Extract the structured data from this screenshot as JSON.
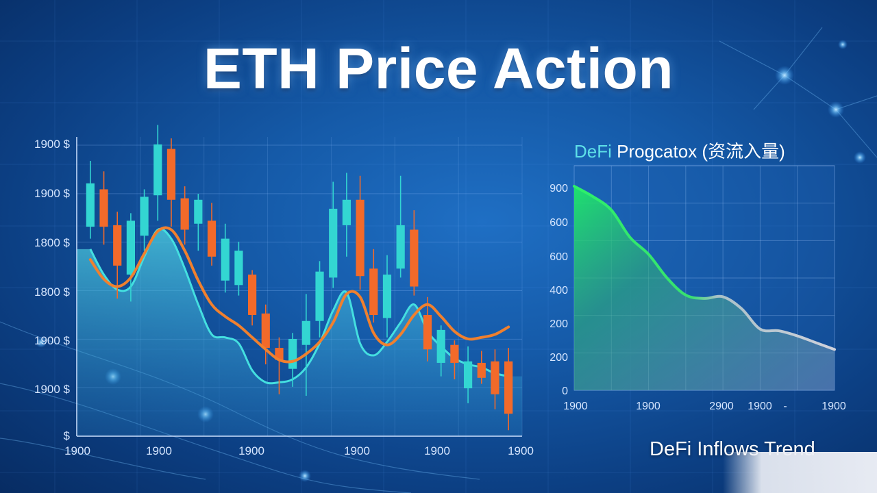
{
  "title": "ETH Price Action",
  "colors": {
    "bull": "#33d6d2",
    "bear": "#f26a2a",
    "ma": "#f0802e",
    "inflow_top": "#2df06a",
    "inflow_end": "#c9cbd6"
  },
  "chart_data": [
    {
      "type": "candlestick",
      "title": "",
      "y_tick_labels": [
        "1900 $",
        "1900 $",
        "1800 $",
        "1800 $",
        "1900 $",
        "1900 $",
        "$"
      ],
      "x_tick_labels": [
        "1900",
        "1900",
        "1900",
        "1900",
        "1900",
        "1900"
      ],
      "ylim": [
        0,
        1000
      ],
      "grid": true,
      "candles": [
        {
          "o": 700,
          "c": 845,
          "h": 920,
          "l": 660,
          "bull": true
        },
        {
          "o": 825,
          "c": 700,
          "h": 885,
          "l": 640,
          "bull": false
        },
        {
          "o": 705,
          "c": 570,
          "h": 750,
          "l": 460,
          "bull": false
        },
        {
          "o": 540,
          "c": 720,
          "h": 745,
          "l": 450,
          "bull": true
        },
        {
          "o": 670,
          "c": 800,
          "h": 825,
          "l": 620,
          "bull": true
        },
        {
          "o": 805,
          "c": 975,
          "h": 1040,
          "l": 720,
          "bull": true
        },
        {
          "o": 960,
          "c": 790,
          "h": 995,
          "l": 700,
          "bull": false
        },
        {
          "o": 795,
          "c": 690,
          "h": 835,
          "l": 640,
          "bull": false
        },
        {
          "o": 710,
          "c": 790,
          "h": 810,
          "l": 620,
          "bull": true
        },
        {
          "o": 720,
          "c": 600,
          "h": 780,
          "l": 570,
          "bull": false
        },
        {
          "o": 660,
          "c": 520,
          "h": 710,
          "l": 480,
          "bull": true
        },
        {
          "o": 620,
          "c": 505,
          "h": 650,
          "l": 470,
          "bull": true
        },
        {
          "o": 540,
          "c": 405,
          "h": 555,
          "l": 370,
          "bull": false
        },
        {
          "o": 410,
          "c": 295,
          "h": 440,
          "l": 240,
          "bull": false
        },
        {
          "o": 295,
          "c": 255,
          "h": 330,
          "l": 140,
          "bull": false
        },
        {
          "o": 225,
          "c": 325,
          "h": 345,
          "l": 165,
          "bull": true
        },
        {
          "o": 305,
          "c": 385,
          "h": 475,
          "l": 135,
          "bull": true
        },
        {
          "o": 385,
          "c": 550,
          "h": 585,
          "l": 330,
          "bull": true
        },
        {
          "o": 530,
          "c": 760,
          "h": 850,
          "l": 495,
          "bull": true
        },
        {
          "o": 705,
          "c": 790,
          "h": 880,
          "l": 600,
          "bull": true
        },
        {
          "o": 790,
          "c": 535,
          "h": 870,
          "l": 490,
          "bull": false
        },
        {
          "o": 560,
          "c": 405,
          "h": 625,
          "l": 380,
          "bull": false
        },
        {
          "o": 395,
          "c": 540,
          "h": 605,
          "l": 330,
          "bull": true
        },
        {
          "o": 560,
          "c": 705,
          "h": 870,
          "l": 530,
          "bull": true
        },
        {
          "o": 690,
          "c": 500,
          "h": 755,
          "l": 470,
          "bull": false
        },
        {
          "o": 405,
          "c": 290,
          "h": 465,
          "l": 250,
          "bull": false
        },
        {
          "o": 355,
          "c": 245,
          "h": 370,
          "l": 200,
          "bull": true
        },
        {
          "o": 305,
          "c": 245,
          "h": 320,
          "l": 190,
          "bull": false
        },
        {
          "o": 250,
          "c": 160,
          "h": 300,
          "l": 110,
          "bull": true
        },
        {
          "o": 245,
          "c": 195,
          "h": 285,
          "l": 175,
          "bull": false
        },
        {
          "o": 250,
          "c": 140,
          "h": 290,
          "l": 90,
          "bull": false
        },
        {
          "o": 250,
          "c": 75,
          "h": 295,
          "l": 20,
          "bull": false
        }
      ],
      "moving_average": [
        590,
        525,
        500,
        530,
        610,
        685,
        690,
        620,
        520,
        440,
        400,
        370,
        330,
        290,
        255,
        250,
        275,
        315,
        380,
        475,
        465,
        345,
        305,
        340,
        405,
        440,
        400,
        350,
        325,
        330,
        340,
        365
      ],
      "area_line": [
        625,
        540,
        490,
        500,
        600,
        690,
        660,
        560,
        440,
        340,
        330,
        310,
        220,
        180,
        180,
        190,
        230,
        310,
        420,
        480,
        310,
        270,
        315,
        380,
        440,
        350,
        300,
        260,
        240,
        230,
        210,
        200
      ]
    },
    {
      "type": "area",
      "title": "DeFi Progcatox (资流入量)",
      "title_accent": "DeFi",
      "title_rest": "Progcatox (资流入量)",
      "caption": "DeFi Inflows Trend",
      "y_tick_labels": [
        "900",
        "600",
        "600",
        "400",
        "200",
        "200",
        "0"
      ],
      "x_tick_labels": [
        "1900",
        "1900",
        "2900",
        "1900",
        "-",
        "1900"
      ],
      "ylim": [
        0,
        6
      ],
      "grid": true,
      "x": [
        0,
        1,
        2,
        3,
        4,
        5,
        6,
        7,
        8,
        9,
        10,
        11,
        12,
        13,
        14
      ],
      "values": [
        6.0,
        5.7,
        5.3,
        4.5,
        4.0,
        3.3,
        2.8,
        2.7,
        2.75,
        2.4,
        1.8,
        1.75,
        1.6,
        1.4,
        1.2
      ]
    }
  ]
}
